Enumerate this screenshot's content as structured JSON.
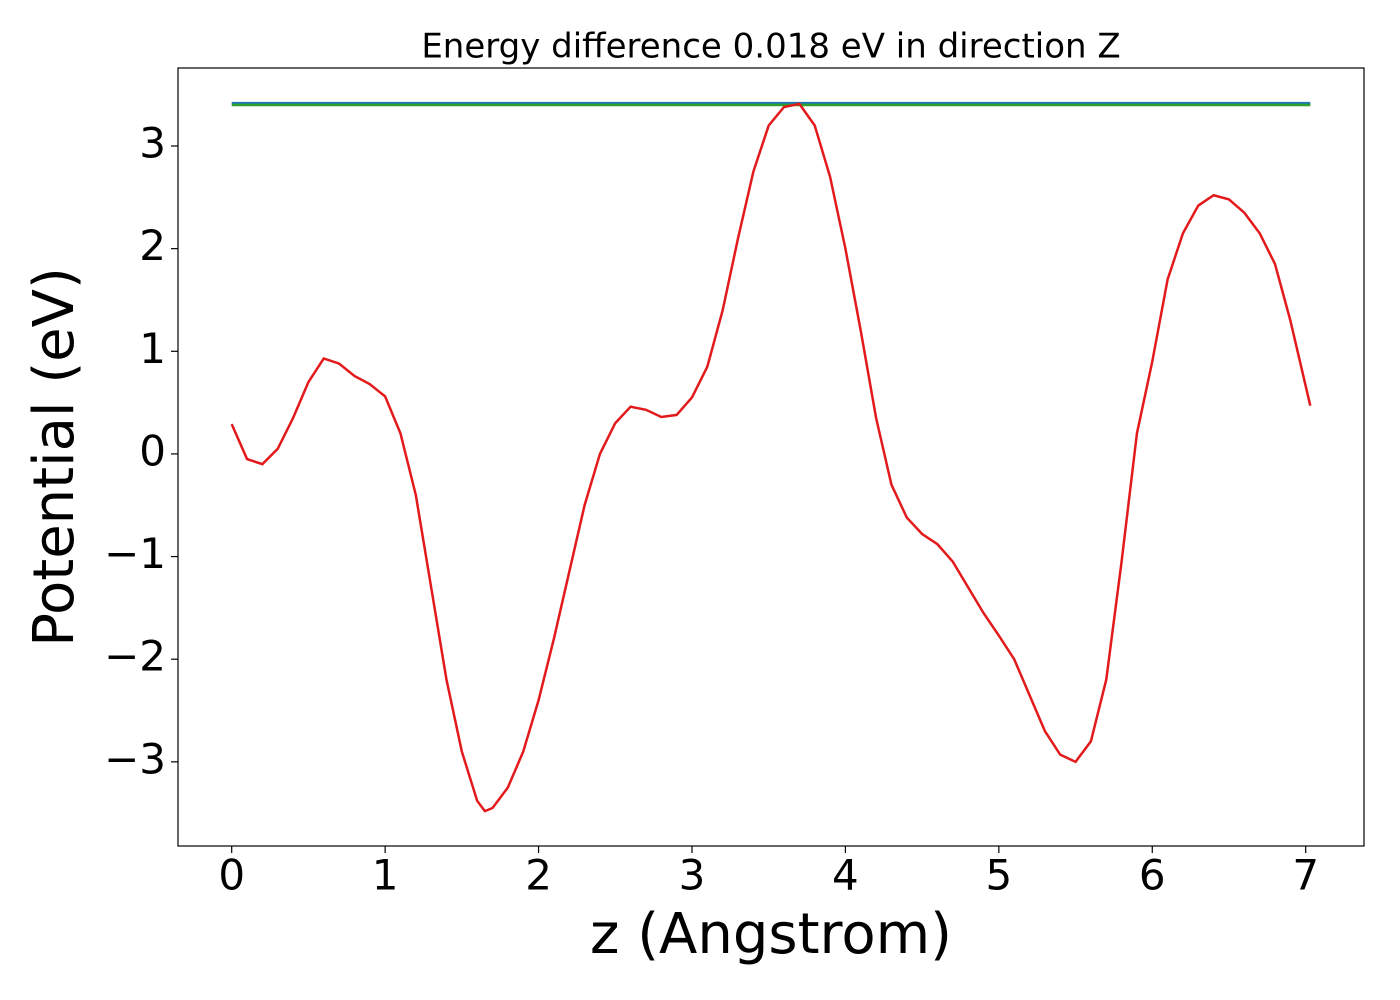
{
  "chart_data": {
    "type": "line",
    "title": "Energy difference 0.018 eV in direction Z",
    "xlabel": "z (Angstrom)",
    "ylabel": "Potential (eV)",
    "xlim": [
      -0.35,
      7.38
    ],
    "ylim": [
      -3.82,
      3.76
    ],
    "xticks": [
      0,
      1,
      2,
      3,
      4,
      5,
      6,
      7
    ],
    "yticks": [
      {
        "value": -3,
        "label": "−3"
      },
      {
        "value": -2,
        "label": "−2"
      },
      {
        "value": -1,
        "label": "−1"
      },
      0,
      1,
      2,
      3
    ],
    "grid": false,
    "series": [
      {
        "color": "#1f77b4",
        "x": [
          0,
          7.03
        ],
        "values": [
          3.418,
          3.418
        ]
      },
      {
        "color": "#2ca02c",
        "x": [
          0,
          7.03
        ],
        "values": [
          3.4,
          3.4
        ]
      },
      {
        "color": "#e31a1c",
        "x": [
          0,
          0.1,
          0.2,
          0.3,
          0.4,
          0.5,
          0.6,
          0.7,
          0.8,
          0.9,
          1.0,
          1.1,
          1.2,
          1.3,
          1.4,
          1.5,
          1.6,
          1.65,
          1.7,
          1.8,
          1.9,
          2.0,
          2.1,
          2.2,
          2.3,
          2.4,
          2.5,
          2.6,
          2.7,
          2.8,
          2.9,
          3.0,
          3.1,
          3.2,
          3.3,
          3.4,
          3.5,
          3.6,
          3.7,
          3.8,
          3.9,
          4.0,
          4.1,
          4.2,
          4.3,
          4.4,
          4.5,
          4.6,
          4.7,
          4.8,
          4.9,
          5.0,
          5.1,
          5.2,
          5.3,
          5.4,
          5.5,
          5.6,
          5.7,
          5.8,
          5.9,
          6.0,
          6.1,
          6.2,
          6.3,
          6.4,
          6.5,
          6.6,
          6.7,
          6.8,
          6.9,
          7.03
        ],
        "values": [
          0.29,
          -0.05,
          -0.1,
          0.05,
          0.35,
          0.7,
          0.93,
          0.88,
          0.76,
          0.68,
          0.56,
          0.2,
          -0.4,
          -1.3,
          -2.2,
          -2.9,
          -3.38,
          -3.48,
          -3.45,
          -3.25,
          -2.9,
          -2.4,
          -1.8,
          -1.15,
          -0.5,
          0.0,
          0.3,
          0.46,
          0.43,
          0.36,
          0.38,
          0.55,
          0.85,
          1.4,
          2.1,
          2.75,
          3.2,
          3.38,
          3.41,
          3.2,
          2.7,
          2.0,
          1.2,
          0.35,
          -0.3,
          -0.62,
          -0.78,
          -0.88,
          -1.05,
          -1.3,
          -1.55,
          -1.77,
          -2.0,
          -2.35,
          -2.7,
          -2.93,
          -3.0,
          -2.8,
          -2.2,
          -1.05,
          0.2,
          0.9,
          1.7,
          2.15,
          2.42,
          2.52,
          2.48,
          2.35,
          2.15,
          1.85,
          1.3,
          0.47
        ]
      }
    ]
  }
}
